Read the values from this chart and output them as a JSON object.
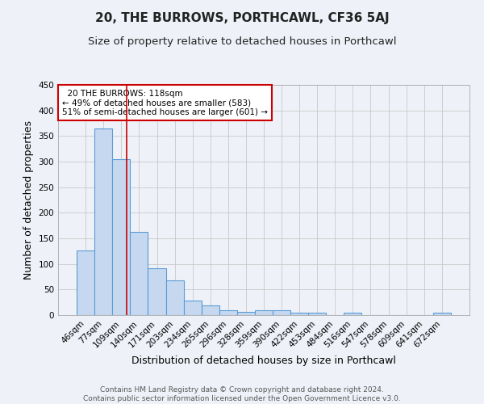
{
  "title": "20, THE BURROWS, PORTHCAWL, CF36 5AJ",
  "subtitle": "Size of property relative to detached houses in Porthcawl",
  "xlabel": "Distribution of detached houses by size in Porthcawl",
  "ylabel": "Number of detached properties",
  "categories": [
    "46sqm",
    "77sqm",
    "109sqm",
    "140sqm",
    "171sqm",
    "203sqm",
    "234sqm",
    "265sqm",
    "296sqm",
    "328sqm",
    "359sqm",
    "390sqm",
    "422sqm",
    "453sqm",
    "484sqm",
    "516sqm",
    "547sqm",
    "578sqm",
    "609sqm",
    "641sqm",
    "672sqm"
  ],
  "values": [
    127,
    365,
    305,
    163,
    92,
    68,
    29,
    19,
    10,
    6,
    9,
    9,
    5,
    4,
    0,
    4,
    0,
    0,
    0,
    0,
    4
  ],
  "bar_color": "#c5d8f0",
  "bar_edge_color": "#5b9bd5",
  "bg_color": "#eef2f8",
  "grid_color": "#c8c8c8",
  "vline_color": "#cc0000",
  "vline_pos": 2.29,
  "annotation_text": "  20 THE BURROWS: 118sqm\n← 49% of detached houses are smaller (583)\n51% of semi-detached houses are larger (601) →",
  "annotation_box_color": "#ffffff",
  "annotation_box_edge": "#cc0000",
  "ylim": [
    0,
    450
  ],
  "yticks": [
    0,
    50,
    100,
    150,
    200,
    250,
    300,
    350,
    400,
    450
  ],
  "footer": "Contains HM Land Registry data © Crown copyright and database right 2024.\nContains public sector information licensed under the Open Government Licence v3.0.",
  "title_fontsize": 11,
  "subtitle_fontsize": 9.5,
  "axis_label_fontsize": 9,
  "tick_fontsize": 7.5,
  "footer_fontsize": 6.5,
  "annotation_fontsize": 7.5
}
